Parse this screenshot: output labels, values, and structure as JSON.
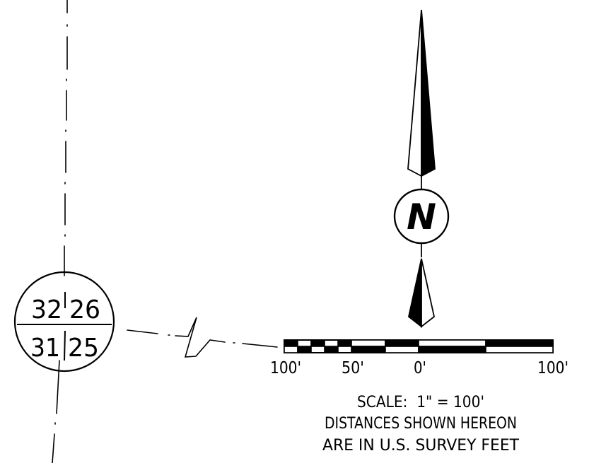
{
  "section_corner": {
    "top_left": "32",
    "top_right": "26",
    "bottom_left": "31",
    "bottom_right": "25"
  },
  "north_arrow": {
    "letter": "N"
  },
  "scale_bar": {
    "labels": [
      "100'",
      "50'",
      "0'",
      "100'"
    ]
  },
  "notes": {
    "scale": "SCALE:  1\" = 100'",
    "line1": "DISTANCES SHOWN HEREON",
    "line2": "ARE IN U.S. SURVEY FEET"
  }
}
